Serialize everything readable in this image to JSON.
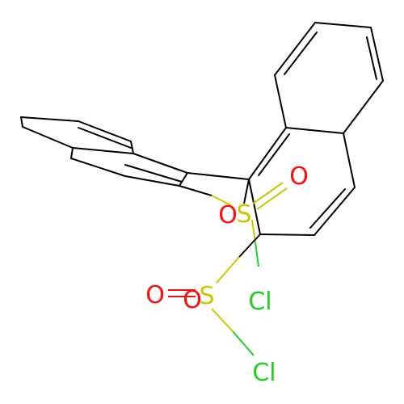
{
  "molecule": {
    "atoms": {
      "o1": "O",
      "o2": "O",
      "o3": "O",
      "o4": "O",
      "s1": "S",
      "s2": "S",
      "cl1": "Cl",
      "cl2": "Cl"
    }
  },
  "colors": {
    "bond": "#000000",
    "oxygen": "#ff0d0d",
    "sulfur": "#c8c800",
    "chlorine": "#1fd01f",
    "background": "#ffffff"
  }
}
